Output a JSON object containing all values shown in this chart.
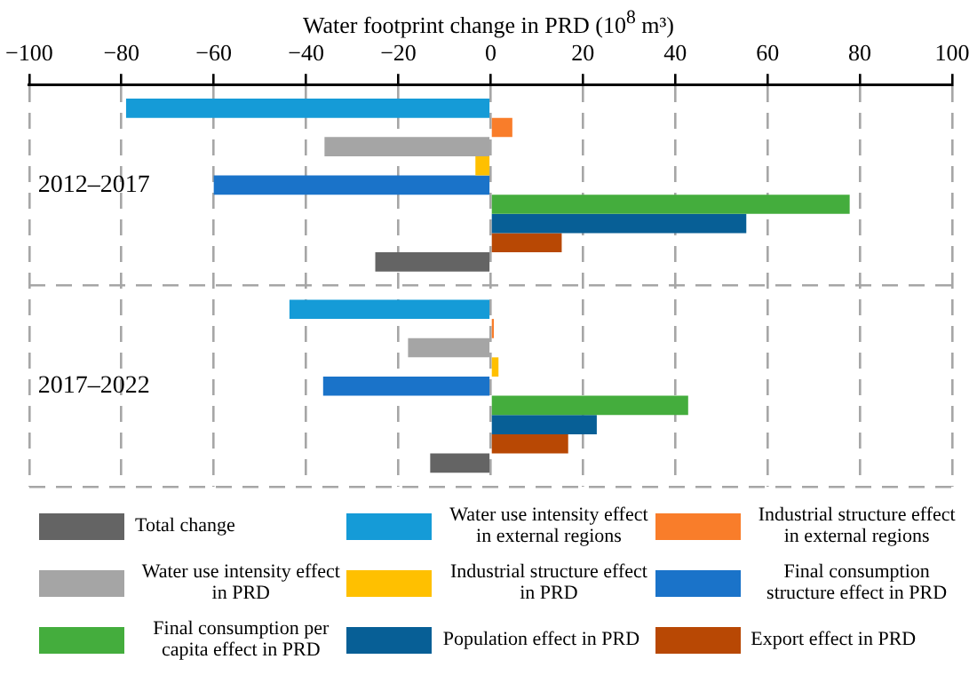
{
  "chart_data": {
    "type": "bar",
    "orientation": "horizontal",
    "xlabel": "Water footprint change  in PRD (10$^{8}$ m³)",
    "categories": [
      "2012–2017",
      "2017–2022"
    ],
    "series": [
      {
        "name": "Water use intensity effect in external regions",
        "color": "#159bd7",
        "values": [
          -79,
          -43.6
        ]
      },
      {
        "name": "Industrial structure effect in external regions",
        "color": "#f97d2a",
        "values": [
          4.7,
          0.7
        ]
      },
      {
        "name": "Water use intensity effect in PRD",
        "color": "#a5a5a5",
        "values": [
          -36,
          -17.9
        ]
      },
      {
        "name": "Industrial structure effect in PRD",
        "color": "#ffc000",
        "values": [
          -3.3,
          1.7
        ]
      },
      {
        "name": "Final consumption structure effect in PRD",
        "color": "#1a73c9",
        "values": [
          -60,
          -36.3
        ]
      },
      {
        "name": "Final consumption per capita effect in PRD",
        "color": "#44ad3d",
        "values": [
          77.8,
          42.8
        ]
      },
      {
        "name": "Population effect in PRD",
        "color": "#075f96",
        "values": [
          55.4,
          23
        ]
      },
      {
        "name": "Export effect in PRD",
        "color": "#b84804",
        "values": [
          15.4,
          16.8
        ]
      },
      {
        "name": "Total change",
        "color": "#646464",
        "values": [
          -25,
          -13.1
        ]
      }
    ],
    "xlim": [
      -100,
      100
    ],
    "xticks": [
      {
        "value": -100,
        "label": "−100"
      },
      {
        "value": -80,
        "label": "−80"
      },
      {
        "value": -60,
        "label": "−60"
      },
      {
        "value": -40,
        "label": "−40"
      },
      {
        "value": -20,
        "label": "−20"
      },
      0,
      20,
      40,
      60,
      80,
      100
    ],
    "grid": true,
    "legend": "bottom"
  }
}
